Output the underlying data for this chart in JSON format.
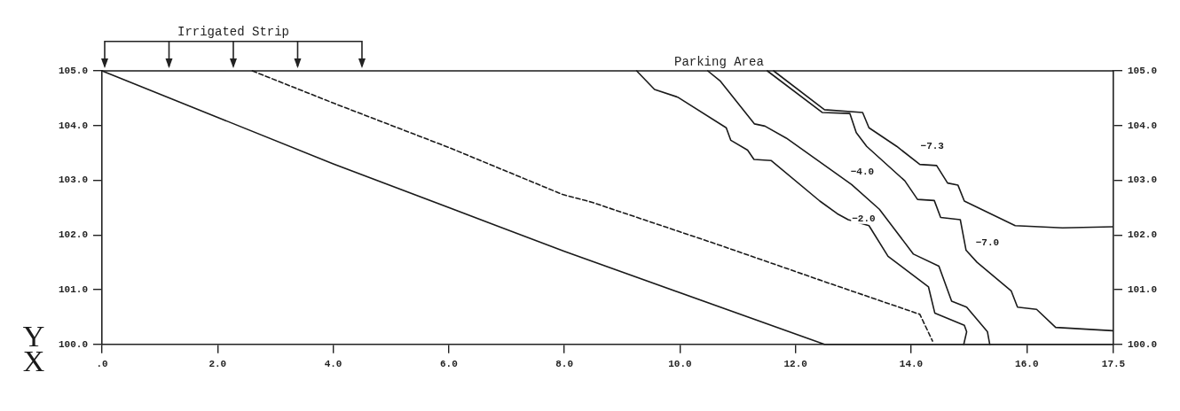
{
  "chart_data": {
    "type": "line",
    "xlabel": "X",
    "ylabel": "Y",
    "xlim": [
      0,
      17.5
    ],
    "xticks": [
      {
        "value": 0,
        "label": ".0"
      },
      {
        "value": 2,
        "label": "2.0"
      },
      {
        "value": 4,
        "label": "4.0"
      },
      {
        "value": 6,
        "label": "6.0"
      },
      {
        "value": 8,
        "label": "8.0"
      },
      {
        "value": 10,
        "label": "10.0"
      },
      {
        "value": 12,
        "label": "12.0"
      },
      {
        "value": 14,
        "label": "14.0"
      },
      {
        "value": 16,
        "label": "16.0"
      },
      17.5
    ],
    "ylim": [
      100,
      105
    ],
    "yticks": [
      {
        "value": 100,
        "label": "100.0"
      },
      {
        "value": 101,
        "label": "101.0"
      },
      {
        "value": 102,
        "label": "102.0"
      },
      {
        "value": 103,
        "label": "103.0"
      },
      {
        "value": 104,
        "label": "104.0"
      },
      {
        "value": 105,
        "label": "105.0"
      }
    ],
    "y2lim": [
      100,
      105
    ],
    "y2ticks": [
      {
        "value": 100,
        "label": "100.0"
      },
      {
        "value": 101,
        "label": "101.0"
      },
      {
        "value": 102,
        "label": "102.0"
      },
      {
        "value": 103,
        "label": "103.0"
      },
      {
        "value": 104,
        "label": "104.0"
      },
      {
        "value": 105,
        "label": "105.0"
      }
    ],
    "grid": false,
    "legend": false,
    "marker": "none",
    "series": [
      {
        "color": "#1a1a1a",
        "x": [
          0,
          17.5
        ],
        "values": [
          105,
          105
        ]
      },
      {
        "color": "#1a1a1a",
        "x": [
          0,
          4,
          8,
          12.5,
          17.5
        ],
        "values": [
          105,
          103.3,
          101.7,
          100,
          100
        ]
      },
      {
        "color": "#1a1a1a",
        "line_style": "dashed",
        "x": [
          2.6,
          4.03,
          6.0,
          7.97,
          8.47,
          10.67,
          12.52,
          14.15,
          14.37
        ],
        "values": [
          105,
          104.4,
          103.6,
          102.74,
          102.6,
          101.82,
          101.14,
          100.55,
          100.06
        ]
      },
      {
        "name": "−2.0",
        "color": "#1a1a1a",
        "x": [
          9.25,
          9.56,
          9.96,
          10.8,
          10.88,
          11.17,
          11.28,
          11.58,
          12.42,
          12.72,
          12.91,
          13.27,
          13.6,
          14.3,
          14.41,
          14.92,
          14.96,
          14.91
        ],
        "values": [
          105,
          104.66,
          104.52,
          103.96,
          103.73,
          103.55,
          103.38,
          103.36,
          102.62,
          102.39,
          102.28,
          102.17,
          101.61,
          101.05,
          100.57,
          100.35,
          100.23,
          100
        ]
      },
      {
        "name": "−4.0",
        "color": "#1a1a1a",
        "x": [
          10.48,
          10.7,
          11.29,
          11.47,
          11.84,
          12.68,
          12.97,
          13.45,
          14.04,
          14.48,
          14.7,
          14.96,
          15.32,
          15.36
        ],
        "values": [
          105,
          104.81,
          104.03,
          103.99,
          103.77,
          103.14,
          102.92,
          102.47,
          101.65,
          101.43,
          100.79,
          100.68,
          100.23,
          100
        ]
      },
      {
        "name": "−7.0",
        "color": "#1a1a1a",
        "x": [
          11.51,
          12.46,
          12.94,
          13.05,
          13.23,
          13.89,
          14.11,
          14.4,
          14.51,
          14.85,
          14.95,
          15.14,
          15.73,
          15.84,
          16.17,
          16.5,
          17.49
        ],
        "values": [
          105,
          104.24,
          104.22,
          103.87,
          103.62,
          102.99,
          102.65,
          102.63,
          102.32,
          102.28,
          101.72,
          101.5,
          100.98,
          100.68,
          100.64,
          100.31,
          100.25
        ]
      },
      {
        "name": "−7.3",
        "color": "#1a1a1a",
        "x": [
          11.62,
          12.5,
          13.16,
          13.27,
          13.75,
          14.15,
          14.44,
          14.63,
          14.81,
          14.92,
          15.8,
          16.62,
          17.49
        ],
        "values": [
          105,
          104.29,
          104.24,
          103.96,
          103.62,
          103.29,
          103.27,
          102.95,
          102.91,
          102.62,
          102.17,
          102.13,
          102.15
        ]
      }
    ],
    "annotations": [
      "Irrigated Strip",
      "Parking Area"
    ]
  }
}
